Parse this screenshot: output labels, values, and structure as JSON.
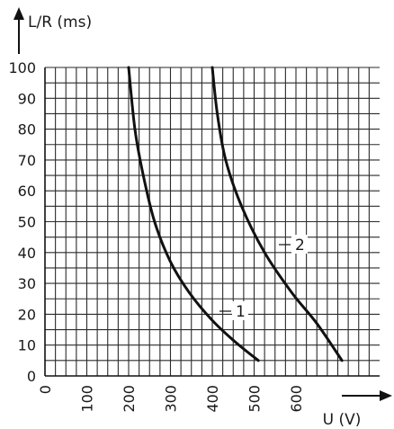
{
  "chart_data": {
    "type": "line",
    "ylabel": "L/R (ms)",
    "xlabel": "U (V)",
    "xlim": [
      0,
      800
    ],
    "ylim": [
      0,
      100
    ],
    "x_ticks": [
      0,
      100,
      200,
      300,
      400,
      500,
      600
    ],
    "y_ticks": [
      0,
      10,
      20,
      30,
      40,
      50,
      60,
      70,
      80,
      90,
      100
    ],
    "grid": true,
    "series": [
      {
        "name": "1",
        "points": [
          [
            200,
            100
          ],
          [
            215,
            80
          ],
          [
            235,
            65
          ],
          [
            262,
            50
          ],
          [
            300,
            37
          ],
          [
            345,
            27
          ],
          [
            400,
            18
          ],
          [
            455,
            11
          ],
          [
            510,
            5
          ]
        ]
      },
      {
        "name": "2",
        "points": [
          [
            400,
            100
          ],
          [
            412,
            85
          ],
          [
            432,
            70
          ],
          [
            470,
            55
          ],
          [
            525,
            40
          ],
          [
            590,
            27
          ],
          [
            650,
            17
          ],
          [
            710,
            5
          ]
        ]
      }
    ],
    "curve_labels": [
      "1",
      "2"
    ]
  }
}
